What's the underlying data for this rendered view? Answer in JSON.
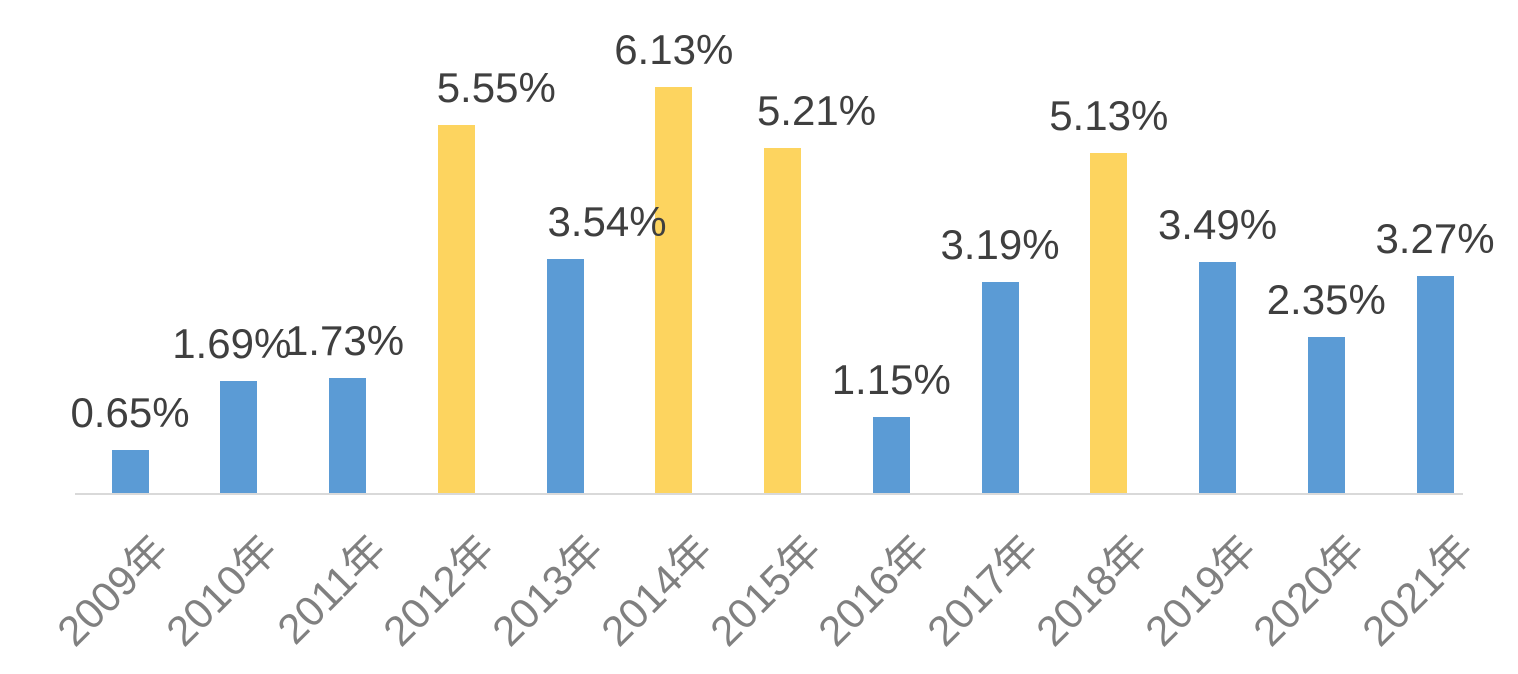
{
  "chart_data": {
    "type": "bar",
    "categories": [
      "2009年",
      "2010年",
      "2011年",
      "2012年",
      "2013年",
      "2014年",
      "2015年",
      "2016年",
      "2017年",
      "2018年",
      "2019年",
      "2020年",
      "2021年"
    ],
    "values": [
      0.65,
      1.69,
      1.73,
      5.55,
      3.54,
      6.13,
      5.21,
      1.15,
      3.19,
      5.13,
      3.49,
      2.35,
      3.27
    ],
    "data_labels": [
      "0.65%",
      "1.69%",
      "1.73%",
      "5.55%",
      "3.54%",
      "6.13%",
      "5.21%",
      "1.15%",
      "3.19%",
      "5.13%",
      "3.49%",
      "2.35%",
      "3.27%"
    ],
    "bar_colors": [
      "#5B9BD5",
      "#5B9BD5",
      "#5B9BD5",
      "#FDD45F",
      "#5B9BD5",
      "#FDD45F",
      "#FDD45F",
      "#5B9BD5",
      "#5B9BD5",
      "#FDD45F",
      "#5B9BD5",
      "#5B9BD5",
      "#5B9BD5"
    ],
    "title": "",
    "xlabel": "",
    "ylabel": "",
    "ylim": [
      0,
      6.5
    ],
    "grid": false,
    "legend": null,
    "y_axis_visible": false,
    "colors": {
      "blue_series": "#5B9BD5",
      "yellow_series": "#FDD45F",
      "data_label": "#3F3F3F",
      "axis_label": "#808080",
      "baseline": "#D9D9D9"
    },
    "layout": {
      "label_dx": [
        0,
        -7,
        -3,
        40,
        42,
        0,
        34,
        0,
        0,
        0,
        0,
        0,
        0
      ]
    }
  }
}
